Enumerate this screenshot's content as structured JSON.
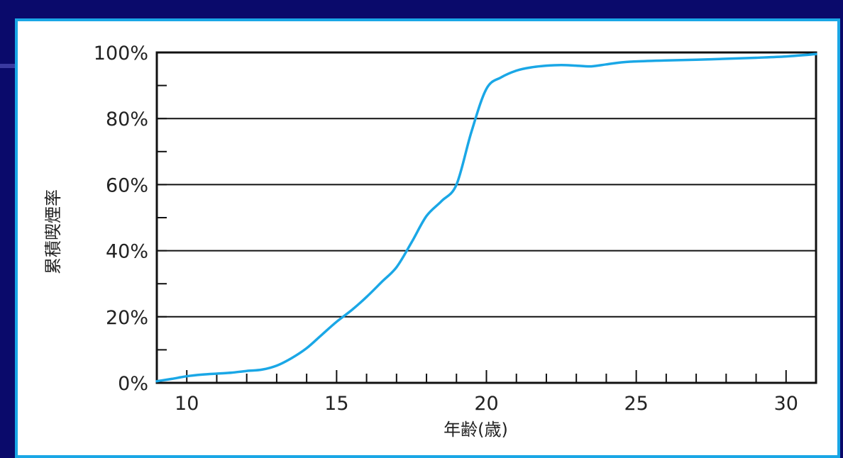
{
  "chart_data": {
    "type": "line",
    "xlabel": "年齢(歳)",
    "ylabel": "累積喫煙率",
    "xlim": [
      9,
      31
    ],
    "ylim": [
      0,
      100
    ],
    "x_ticks": [
      10,
      15,
      20,
      25,
      30
    ],
    "x_minor_step": 1,
    "y_ticks": [
      0,
      20,
      40,
      60,
      80,
      100
    ],
    "y_tick_labels": [
      "0%",
      "20%",
      "40%",
      "60%",
      "80%",
      "100%"
    ],
    "y_minor_step": 10,
    "grid": true,
    "series": [
      {
        "color": "#1aa7e6",
        "x": [
          9,
          9.5,
          10,
          10.5,
          11,
          11.5,
          12,
          12.5,
          13,
          13.5,
          14,
          14.5,
          15,
          15.5,
          16,
          16.5,
          17,
          17.5,
          18,
          18.5,
          19,
          19.5,
          20,
          20.5,
          21,
          21.5,
          22,
          22.5,
          23,
          23.5,
          24,
          24.5,
          25,
          26,
          27,
          28,
          29,
          30,
          31
        ],
        "y": [
          0.5,
          1.2,
          2,
          2.5,
          2.8,
          3.1,
          3.6,
          4,
          5.2,
          7.5,
          10.5,
          14.5,
          18.5,
          22,
          26,
          30.5,
          35,
          42.5,
          50.5,
          55,
          60,
          76,
          89,
          92.5,
          94.5,
          95.5,
          96,
          96.2,
          96,
          95.8,
          96.4,
          97,
          97.3,
          97.6,
          97.8,
          98.1,
          98.4,
          98.8,
          99.5
        ]
      }
    ]
  }
}
